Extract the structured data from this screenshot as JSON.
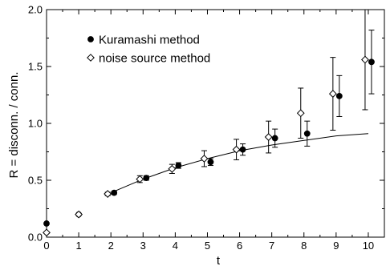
{
  "chart_data": {
    "type": "scatter",
    "title": "",
    "xlabel": "t",
    "ylabel": "R = disconn. / conn.",
    "xlim": [
      0,
      10.5
    ],
    "ylim": [
      0.0,
      2.0
    ],
    "x_ticks": [
      0,
      1,
      2,
      3,
      4,
      5,
      6,
      7,
      8,
      9,
      10
    ],
    "y_ticks": [
      0.0,
      0.5,
      1.0,
      1.5,
      2.0
    ],
    "x_tick_labels": [
      "0",
      "1",
      "2",
      "3",
      "4",
      "5",
      "6",
      "7",
      "8",
      "9",
      "10"
    ],
    "y_tick_labels": [
      "0.0",
      "0.5",
      "1.0",
      "1.5",
      "2.0"
    ],
    "grid": false,
    "legend_position": "top-left",
    "series": [
      {
        "name": "Kuramashi method",
        "marker": "filled-circle",
        "color": "#000000",
        "points": [
          {
            "x": 0,
            "y": 0.12,
            "err": 0
          },
          {
            "x": 1,
            "y": 0.2,
            "err": 0
          },
          {
            "x": 2,
            "y": 0.39,
            "err": 0.015
          },
          {
            "x": 3,
            "y": 0.52,
            "err": 0.02
          },
          {
            "x": 4,
            "y": 0.63,
            "err": 0.025
          },
          {
            "x": 5,
            "y": 0.66,
            "err": 0.03
          },
          {
            "x": 6,
            "y": 0.77,
            "err": 0.05
          },
          {
            "x": 7,
            "y": 0.87,
            "err": 0.08
          },
          {
            "x": 8,
            "y": 0.91,
            "err": 0.11
          },
          {
            "x": 9,
            "y": 1.24,
            "err": 0.18
          },
          {
            "x": 10,
            "y": 1.54,
            "err": 0.28
          }
        ]
      },
      {
        "name": "noise source method",
        "marker": "open-diamond",
        "color": "#000000",
        "points": [
          {
            "x": 0,
            "y": 0.04,
            "err": 0
          },
          {
            "x": 1,
            "y": 0.2,
            "err": 0
          },
          {
            "x": 2,
            "y": 0.38,
            "err": 0.015
          },
          {
            "x": 3,
            "y": 0.51,
            "err": 0.03
          },
          {
            "x": 4,
            "y": 0.6,
            "err": 0.04
          },
          {
            "x": 5,
            "y": 0.69,
            "err": 0.07
          },
          {
            "x": 6,
            "y": 0.77,
            "err": 0.09
          },
          {
            "x": 7,
            "y": 0.88,
            "err": 0.14
          },
          {
            "x": 8,
            "y": 1.09,
            "err": 0.22
          },
          {
            "x": 9,
            "y": 1.26,
            "err": 0.32
          },
          {
            "x": 10,
            "y": 1.56,
            "err": 0.44
          }
        ]
      }
    ],
    "fit_curve": {
      "x": [
        2,
        3,
        4,
        5,
        6,
        7,
        8,
        9,
        10
      ],
      "y": [
        0.39,
        0.51,
        0.61,
        0.69,
        0.76,
        0.81,
        0.85,
        0.89,
        0.91
      ]
    }
  }
}
